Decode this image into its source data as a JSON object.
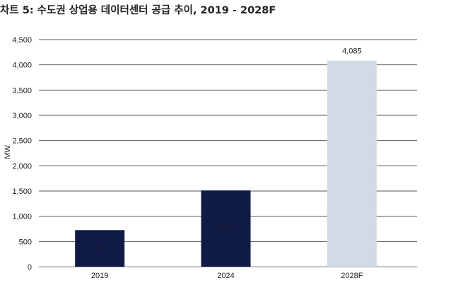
{
  "chart_data": {
    "type": "bar",
    "title": "차트 5: 수도권 상업용 데이터센터 공급 추이, 2019 - 2028F",
    "xlabel": "",
    "ylabel": "MW",
    "categories": [
      "2019",
      "2024",
      "2028F"
    ],
    "values": [
      725,
      1511,
      4085
    ],
    "data_labels": [
      "725",
      "1,511",
      "4,085"
    ],
    "ylim": [
      0,
      4500
    ],
    "yticks": [
      0,
      500,
      1000,
      1500,
      2000,
      2500,
      3000,
      3500,
      4000,
      4500
    ],
    "ytick_labels": [
      "0",
      "500",
      "1,000",
      "1,500",
      "2,000",
      "2,500",
      "3,000",
      "3,500",
      "4,000",
      "4,500"
    ],
    "grid": true,
    "colors": [
      "#0f1b45",
      "#0f1b45",
      "#d3d9e6"
    ],
    "label_color": [
      "#1c2233",
      "#1c2233",
      "#222222"
    ]
  }
}
